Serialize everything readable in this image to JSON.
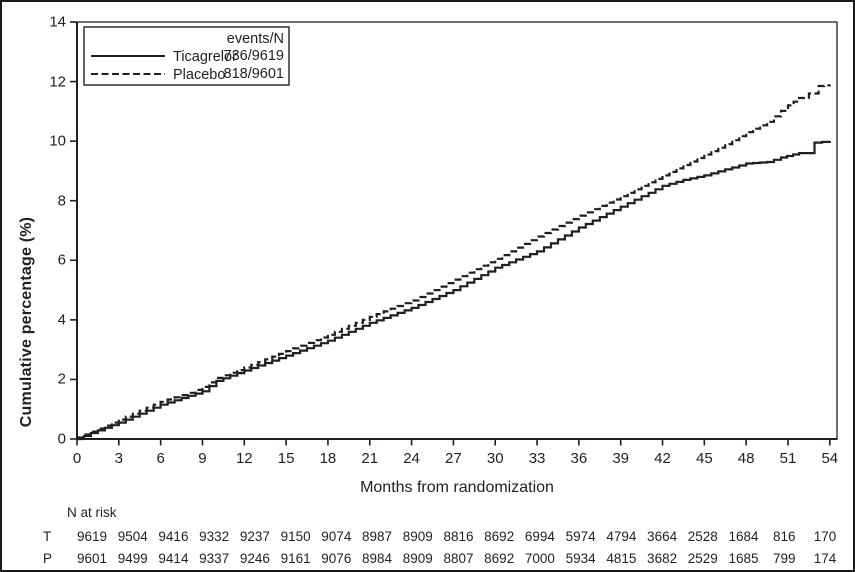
{
  "figure": {
    "background": "#ffffff",
    "line_color": "#231f20",
    "text_color": "#231f20",
    "border_color": "#1a1a1a"
  },
  "legend": {
    "header": "events/N",
    "entries": [
      {
        "label": "Ticagrelor",
        "events_n": "736/9619",
        "line_style": "solid"
      },
      {
        "label": "Placebo",
        "events_n": "818/9601",
        "line_style": "dashed"
      }
    ]
  },
  "axes": {
    "y_label": "Cumulative percentage (%)",
    "x_label": "Months from randomization"
  },
  "n_at_risk": {
    "title": "N at risk",
    "rows": [
      {
        "label": "T",
        "values": [
          9619,
          9504,
          9416,
          9332,
          9237,
          9150,
          9074,
          8987,
          8909,
          8816,
          8692,
          6994,
          5974,
          4794,
          3664,
          2528,
          1684,
          816,
          170
        ]
      },
      {
        "label": "P",
        "values": [
          9601,
          9499,
          9414,
          9337,
          9246,
          9161,
          9076,
          8984,
          8909,
          8807,
          8692,
          7000,
          5934,
          4815,
          3682,
          2529,
          1685,
          799,
          174
        ]
      }
    ]
  },
  "chart_data": {
    "type": "line",
    "subtype": "kaplan-meier-cumulative-incidence",
    "title": "",
    "xlabel": "Months from randomization",
    "ylabel": "Cumulative percentage (%)",
    "xlim": [
      0,
      54.5
    ],
    "ylim": [
      0,
      14
    ],
    "x_ticks": [
      0,
      3,
      6,
      9,
      12,
      15,
      18,
      21,
      24,
      27,
      30,
      33,
      36,
      39,
      42,
      45,
      48,
      51,
      54
    ],
    "y_ticks": [
      0,
      2,
      4,
      6,
      8,
      10,
      12,
      14
    ],
    "grid": false,
    "legend_position": "top-left",
    "series": [
      {
        "name": "Ticagrelor",
        "style": "solid",
        "events_n": "736/9619",
        "points": [
          [
            0,
            0
          ],
          [
            1,
            0.2
          ],
          [
            3,
            0.55
          ],
          [
            6,
            1.15
          ],
          [
            8,
            1.45
          ],
          [
            9,
            1.6
          ],
          [
            10,
            1.95
          ],
          [
            12,
            2.3
          ],
          [
            15,
            2.8
          ],
          [
            18,
            3.3
          ],
          [
            21,
            3.9
          ],
          [
            24,
            4.4
          ],
          [
            27,
            5.0
          ],
          [
            30,
            5.75
          ],
          [
            33,
            6.3
          ],
          [
            36,
            7.1
          ],
          [
            39,
            7.8
          ],
          [
            42,
            8.5
          ],
          [
            43.5,
            8.7
          ],
          [
            45,
            8.85
          ],
          [
            46.5,
            9.05
          ],
          [
            48,
            9.25
          ],
          [
            49.5,
            9.3
          ],
          [
            50.5,
            9.45
          ],
          [
            51.8,
            9.6
          ],
          [
            52.6,
            9.6
          ],
          [
            52.9,
            9.95
          ],
          [
            54,
            10.0
          ]
        ]
      },
      {
        "name": "Placebo",
        "style": "dashed",
        "events_n": "818/9601",
        "points": [
          [
            0,
            0.05
          ],
          [
            1,
            0.25
          ],
          [
            3,
            0.65
          ],
          [
            6,
            1.25
          ],
          [
            8,
            1.55
          ],
          [
            9,
            1.75
          ],
          [
            10,
            2.05
          ],
          [
            12,
            2.4
          ],
          [
            15,
            2.95
          ],
          [
            18,
            3.5
          ],
          [
            21,
            4.1
          ],
          [
            24,
            4.65
          ],
          [
            27,
            5.35
          ],
          [
            30,
            6.05
          ],
          [
            33,
            6.8
          ],
          [
            36,
            7.5
          ],
          [
            39,
            8.15
          ],
          [
            42,
            8.85
          ],
          [
            43.5,
            9.2
          ],
          [
            45,
            9.55
          ],
          [
            46.5,
            9.9
          ],
          [
            48,
            10.3
          ],
          [
            49.5,
            10.65
          ],
          [
            51,
            11.2
          ],
          [
            51.8,
            11.45
          ],
          [
            52.5,
            11.6
          ],
          [
            53.2,
            11.85
          ],
          [
            54,
            11.9
          ]
        ]
      }
    ]
  }
}
